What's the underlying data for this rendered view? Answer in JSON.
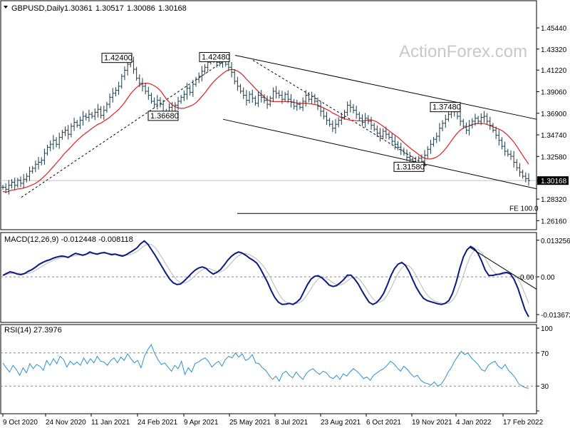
{
  "chart_data": [
    {
      "type": "candlestick",
      "title": "GBPUSD,Daily",
      "ohlc": {
        "open": "1.30361",
        "high": "1.30517",
        "low": "1.30086",
        "close": "1.30168"
      },
      "ylim": [
        1.254,
        1.468
      ],
      "y_ticks": [
        "1.45440",
        "1.43320",
        "1.41220",
        "1.39060",
        "1.36900",
        "1.34740",
        "1.32580",
        "1.30168",
        "1.28320",
        "1.26160"
      ],
      "current_price": "1.30168",
      "x_tick_labels": [
        "9 Oct 2020",
        "24 Nov 2020",
        "11 Jan 2021",
        "24 Feb 2021",
        "9 Apr 2021",
        "25 May 2021",
        "8 Jul 2021",
        "23 Aug 2021",
        "6 Oct 2021",
        "19 Nov 2021",
        "4 Jan 2022",
        "17 Feb 2022"
      ],
      "close_series": [
        1.295,
        1.293,
        1.297,
        1.3,
        1.297,
        1.302,
        1.299,
        1.303,
        1.306,
        1.311,
        1.314,
        1.318,
        1.32,
        1.322,
        1.329,
        1.335,
        1.338,
        1.342,
        1.338,
        1.345,
        1.35,
        1.352,
        1.348,
        1.356,
        1.36,
        1.357,
        1.362,
        1.366,
        1.365,
        1.368,
        1.366,
        1.37,
        1.373,
        1.367,
        1.372,
        1.378,
        1.385,
        1.389,
        1.392,
        1.396,
        1.406,
        1.412,
        1.418,
        1.421,
        1.413,
        1.404,
        1.399,
        1.396,
        1.391,
        1.387,
        1.381,
        1.378,
        1.382,
        1.378,
        1.371,
        1.369,
        1.375,
        1.371,
        1.377,
        1.381,
        1.385,
        1.388,
        1.394,
        1.39,
        1.398,
        1.403,
        1.406,
        1.411,
        1.415,
        1.42,
        1.423,
        1.424,
        1.42,
        1.419,
        1.422,
        1.418,
        1.415,
        1.41,
        1.401,
        1.396,
        1.391,
        1.387,
        1.382,
        1.388,
        1.384,
        1.379,
        1.387,
        1.385,
        1.382,
        1.378,
        1.384,
        1.391,
        1.389,
        1.387,
        1.383,
        1.388,
        1.383,
        1.38,
        1.376,
        1.378,
        1.375,
        1.381,
        1.387,
        1.383,
        1.386,
        1.381,
        1.376,
        1.371,
        1.366,
        1.362,
        1.358,
        1.354,
        1.358,
        1.362,
        1.365,
        1.37,
        1.377,
        1.375,
        1.372,
        1.368,
        1.364,
        1.36,
        1.364,
        1.361,
        1.357,
        1.353,
        1.349,
        1.346,
        1.351,
        1.348,
        1.345,
        1.341,
        1.338,
        1.335,
        1.332,
        1.329,
        1.325,
        1.323,
        1.321,
        1.32,
        1.324,
        1.321,
        1.327,
        1.333,
        1.338,
        1.343,
        1.346,
        1.354,
        1.359,
        1.363,
        1.368,
        1.371,
        1.372,
        1.366,
        1.361,
        1.356,
        1.352,
        1.357,
        1.361,
        1.364,
        1.361,
        1.365,
        1.366,
        1.361,
        1.357,
        1.352,
        1.347,
        1.342,
        1.336,
        1.331,
        1.328,
        1.326,
        1.32,
        1.3145,
        1.3102,
        1.306,
        1.3037,
        1.3017
      ],
      "ma_line_note": "red moving average",
      "annotations": [
        {
          "text": "1.42400"
        },
        {
          "text": "1.42480"
        },
        {
          "text": "1.36680"
        },
        {
          "text": "1.37480"
        },
        {
          "text": "1.31580"
        },
        {
          "text": "FE 100.0"
        }
      ],
      "watermark": "ActionForex.com"
    },
    {
      "type": "line",
      "title": "MACD(12,26,9) -0.012448 -0.008118",
      "ylim": [
        -0.016,
        0.015
      ],
      "y_ticks": [
        "0.013256",
        "0.00",
        "-0.013672"
      ],
      "zero_label": "0.00",
      "macd_series": [
        0.0005,
        0.0012,
        0.0018,
        0.0015,
        0.001,
        0.0008,
        0.0012,
        0.002,
        0.0026,
        0.0035,
        0.0045,
        0.0052,
        0.0058,
        0.0062,
        0.0068,
        0.0072,
        0.0075,
        0.0074,
        0.007,
        0.0078,
        0.0085,
        0.0082,
        0.0078,
        0.0082,
        0.009,
        0.0085,
        0.0082,
        0.0086,
        0.0088,
        0.0084,
        0.008,
        0.0082,
        0.0078,
        0.0075,
        0.008,
        0.0088,
        0.0096,
        0.0105,
        0.012,
        0.013,
        0.0118,
        0.0098,
        0.0078,
        0.0056,
        0.0034,
        0.0012,
        -0.0008,
        -0.0022,
        -0.0028,
        -0.0026,
        -0.0015,
        -0.0002,
        0.0012,
        0.0024,
        0.0032,
        0.0036,
        0.0031,
        0.0019,
        0.001,
        0.0016,
        0.0026,
        0.0042,
        0.006,
        0.0074,
        0.0084,
        0.009,
        0.0086,
        0.0078,
        0.0068,
        0.006,
        0.005,
        0.003,
        0.0005,
        -0.002,
        -0.005,
        -0.0075,
        -0.0092,
        -0.01,
        -0.0099,
        -0.0096,
        -0.01,
        -0.0092,
        -0.008,
        -0.0054,
        -0.0028,
        -0.0008,
        0.0002,
        0.0004,
        -0.0004,
        -0.0016,
        -0.003,
        -0.0035,
        -0.0032,
        -0.0022,
        -0.001,
        0.0006,
        0.0006,
        -0.0008,
        -0.0026,
        -0.005,
        -0.0072,
        -0.0092,
        -0.01,
        -0.0094,
        -0.008,
        -0.006,
        -0.003,
        0.0004,
        0.003,
        0.0046,
        0.0052,
        0.0042,
        0.002,
        -0.001,
        -0.0038,
        -0.006,
        -0.0078,
        -0.0086,
        -0.009,
        -0.0094,
        -0.0098,
        -0.01,
        -0.0096,
        -0.0086,
        -0.006,
        -0.002,
        0.003,
        0.0072,
        0.0098,
        0.011,
        0.0102,
        0.0085,
        0.0058,
        0.0025,
        0.0005,
        0.0005,
        0.0008,
        0.001,
        0.0014,
        0.0016,
        0.001,
        -0.001,
        -0.004,
        -0.008,
        -0.012,
        -0.0145
      ],
      "signal_series_note": "light grey signal line"
    },
    {
      "type": "line",
      "title": "RSI(14) 27.3976",
      "ylim": [
        0,
        100
      ],
      "y_ticks": [
        "100",
        "70",
        "30",
        "0"
      ],
      "levels": [
        70,
        30
      ],
      "rsi_series": [
        58,
        52,
        47,
        55,
        50,
        43,
        52,
        46,
        57,
        51,
        56,
        54,
        49,
        61,
        55,
        63,
        57,
        66,
        62,
        53,
        60,
        56,
        59,
        55,
        64,
        57,
        63,
        58,
        66,
        60,
        59,
        55,
        61,
        64,
        58,
        65,
        61,
        69,
        63,
        58,
        61,
        52,
        66,
        74,
        80,
        70,
        62,
        56,
        58,
        53,
        48,
        55,
        51,
        60,
        44,
        52,
        47,
        57,
        59,
        62,
        64,
        60,
        53,
        57,
        60,
        54,
        62,
        66,
        64,
        70,
        65,
        69,
        61,
        63,
        68,
        58,
        57,
        52,
        49,
        43,
        38,
        42,
        36,
        45,
        48,
        43,
        40,
        47,
        42,
        38,
        45,
        49,
        51,
        47,
        44,
        48,
        46,
        41,
        39,
        43,
        38,
        45,
        42,
        47,
        51,
        48,
        44,
        39,
        41,
        37,
        43,
        46,
        49,
        51,
        55,
        60,
        57,
        52,
        48,
        54,
        50,
        45,
        41,
        43,
        37,
        34,
        33,
        31,
        35,
        30,
        32,
        38,
        46,
        52,
        60,
        66,
        72,
        68,
        70,
        64,
        60,
        56,
        50,
        48,
        55,
        58,
        60,
        54,
        51,
        56,
        49,
        45,
        40,
        33,
        30,
        28,
        27.3976
      ]
    }
  ]
}
